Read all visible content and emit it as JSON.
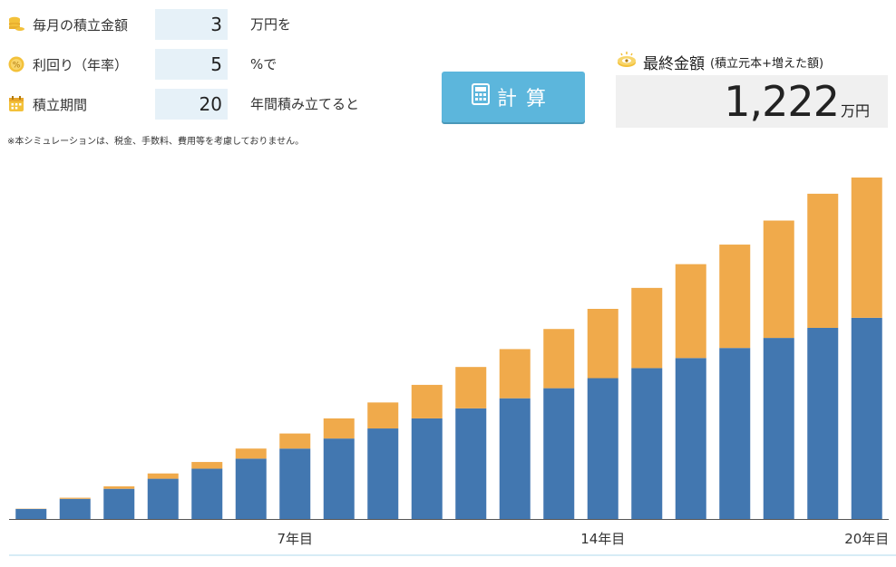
{
  "inputs": {
    "monthly": {
      "label": "毎月の積立金額",
      "value": "3",
      "unit": "万円を"
    },
    "rate": {
      "label": "利回り（年率）",
      "value": "5",
      "unit": "%で"
    },
    "period": {
      "label": "積立期間",
      "value": "20",
      "unit": "年間積み立てると"
    }
  },
  "note": "※本シミュレーションは、税金、手数料、費用等を考慮しておりません。",
  "calc_button": {
    "label": "計算",
    "icon": "calculator-icon"
  },
  "result": {
    "title": "最終金額",
    "subtitle": "(積立元本+増えた額)",
    "value": "1,222",
    "unit": "万円",
    "icon": "coin-eye-icon"
  },
  "colors": {
    "principal": "#4277b0",
    "growth": "#f0aa4b",
    "button": "#5cb6dc",
    "input_bg": "#e6f1f8"
  },
  "chart_data": {
    "type": "bar",
    "stacked": true,
    "categories": [
      "1",
      "2",
      "3",
      "4",
      "5",
      "6",
      "7",
      "8",
      "9",
      "10",
      "11",
      "12",
      "13",
      "14",
      "15",
      "16",
      "17",
      "18",
      "19",
      "20"
    ],
    "series": [
      {
        "values": [
          36,
          72,
          108,
          144,
          180,
          216,
          252,
          288,
          324,
          360,
          396,
          432,
          468,
          504,
          540,
          576,
          612,
          648,
          684,
          720
        ]
      },
      {
        "values": [
          1,
          4,
          9,
          19,
          24,
          36,
          54,
          72,
          93,
          120,
          148,
          176,
          212,
          248,
          287,
          336,
          370,
          420,
          480,
          502
        ]
      }
    ],
    "tick_labels": [
      {
        "category": "7",
        "text": "7年目"
      },
      {
        "category": "14",
        "text": "14年目"
      },
      {
        "category": "20",
        "text": "20年目"
      }
    ],
    "ylim": [
      0,
      1222
    ]
  }
}
